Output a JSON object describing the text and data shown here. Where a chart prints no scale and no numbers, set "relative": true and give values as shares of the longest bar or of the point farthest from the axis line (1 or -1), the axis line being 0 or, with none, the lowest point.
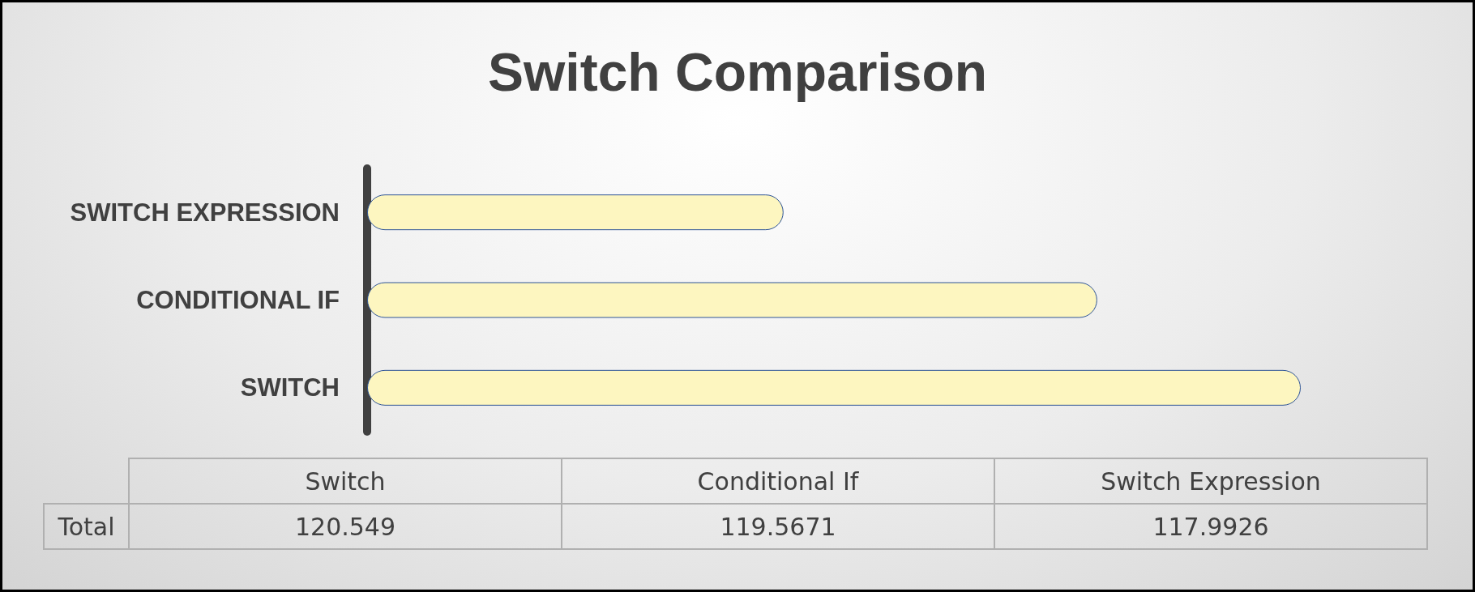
{
  "chart_data": [
    {
      "type": "bar",
      "orientation": "horizontal",
      "title": "Switch Comparison",
      "relative": true,
      "categories": [
        "SWITCH EXPRESSION",
        "CONDITIONAL IF",
        "SWITCH"
      ],
      "series": [
        {
          "color": "#fdf6c0",
          "values": [
            0.446,
            0.782,
            1
          ]
        }
      ]
    },
    {
      "type": "other",
      "categories": [
        "Switch",
        "Conditional If",
        "Switch Expression"
      ],
      "series": [
        {
          "name": "Total",
          "values": [
            120.549,
            119.5671,
            117.9926
          ]
        }
      ],
      "data_labels": true
    }
  ]
}
